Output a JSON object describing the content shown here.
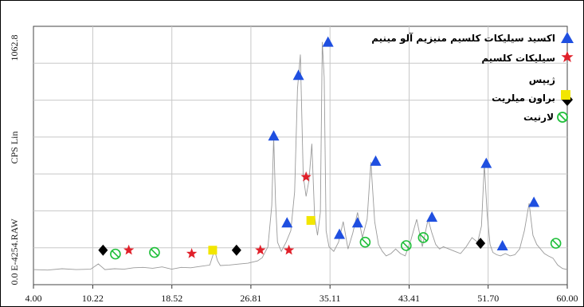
{
  "chart_data": {
    "type": "line",
    "ylabel": "CPS Lin",
    "side_label": "E-4254.RAW",
    "y_tick_labels": [
      "0.0",
      "1062.8"
    ],
    "ylim": [
      0,
      1062.8
    ],
    "xlim": [
      4.0,
      60.0
    ],
    "x_tick_labels": [
      "4.00",
      "10.22",
      "18.52",
      "26.81",
      "35.11",
      "43.41",
      "51.70",
      "60.00"
    ],
    "x_ticks": [
      4.0,
      10.22,
      18.52,
      26.81,
      35.11,
      43.41,
      51.7,
      60.0
    ],
    "grid": true,
    "legend_position": "top-right",
    "colors": {
      "trace": "#9a9a9a",
      "blue": "#1f4fe0",
      "red": "#e0202a",
      "black": "#000000",
      "yellow": "#f2e600",
      "green": "#1fbf3a"
    },
    "legend": [
      {
        "label": "اکسید سیلیکات کلسیم منیزیم آلو مینیم",
        "marker": "triangle",
        "color": "#1f4fe0"
      },
      {
        "label": "سیلیکات کلسیم",
        "marker": "star",
        "color": "#e0202a"
      },
      {
        "label": "ژیپس",
        "marker": "diamond",
        "color": "#000000"
      },
      {
        "label": "براون میلریت",
        "marker": "square",
        "color": "#f2e600"
      },
      {
        "label": "لارنیت",
        "marker": "circle-slash",
        "color": "#1fbf3a"
      }
    ],
    "series": [
      {
        "x": [
          4.0,
          5.5,
          7.0,
          8.5,
          10.0,
          10.8,
          11.5,
          12.5,
          13.5,
          14.5,
          15.5,
          16.5,
          17.5,
          18.5,
          19.5,
          20.5,
          21.5,
          22.5,
          23.0,
          23.3,
          23.6,
          24.5,
          25.5,
          26.5,
          27.5,
          28.0,
          28.6,
          29.0,
          29.2,
          29.4,
          29.6,
          30.0,
          30.5,
          31.0,
          31.4,
          31.7,
          32.0,
          32.3,
          32.6,
          32.9,
          33.2,
          33.5,
          33.8,
          34.1,
          34.3,
          34.5,
          34.7,
          35.0,
          35.5,
          36.0,
          36.5,
          37.0,
          37.5,
          38.0,
          38.5,
          39.0,
          39.4,
          39.8,
          40.2,
          40.6,
          41.0,
          41.5,
          42.0,
          42.5,
          43.0,
          43.6,
          44.2,
          44.8,
          45.4,
          45.8,
          46.2,
          46.6,
          47.0,
          47.6,
          48.2,
          48.8,
          49.4,
          50.0,
          50.6,
          51.0,
          51.3,
          51.6,
          51.9,
          52.2,
          52.6,
          53.0,
          53.5,
          54.0,
          54.5,
          55.0,
          55.5,
          56.0,
          56.4,
          56.8,
          57.2,
          57.6,
          58.0,
          58.5,
          59.0,
          59.5,
          60.0
        ],
        "y": [
          10,
          8,
          14,
          10,
          12,
          35,
          10,
          14,
          12,
          18,
          20,
          16,
          22,
          12,
          20,
          18,
          24,
          30,
          95,
          50,
          28,
          30,
          34,
          38,
          48,
          62,
          110,
          290,
          590,
          300,
          130,
          90,
          130,
          180,
          350,
          800,
          950,
          420,
          330,
          400,
          560,
          240,
          160,
          260,
          1005,
          850,
          180,
          110,
          90,
          130,
          220,
          100,
          170,
          260,
          150,
          230,
          480,
          220,
          120,
          90,
          70,
          80,
          100,
          80,
          70,
          140,
          230,
          110,
          230,
          170,
          120,
          100,
          110,
          100,
          90,
          80,
          110,
          150,
          130,
          200,
          470,
          250,
          120,
          85,
          75,
          70,
          80,
          70,
          75,
          100,
          180,
          300,
          160,
          120,
          100,
          80,
          70,
          60,
          30,
          15,
          10
        ]
      }
    ],
    "markers": [
      {
        "kind": "triangle",
        "color": "#1f4fe0",
        "x": 29.2,
        "y": 595
      },
      {
        "kind": "triangle",
        "color": "#1f4fe0",
        "x": 30.6,
        "y": 215
      },
      {
        "kind": "triangle",
        "color": "#1f4fe0",
        "x": 31.8,
        "y": 860
      },
      {
        "kind": "triangle",
        "color": "#1f4fe0",
        "x": 34.9,
        "y": 1005
      },
      {
        "kind": "triangle",
        "color": "#1f4fe0",
        "x": 36.1,
        "y": 165
      },
      {
        "kind": "triangle",
        "color": "#1f4fe0",
        "x": 38.0,
        "y": 215
      },
      {
        "kind": "triangle",
        "color": "#1f4fe0",
        "x": 39.9,
        "y": 485
      },
      {
        "kind": "triangle",
        "color": "#1f4fe0",
        "x": 45.8,
        "y": 240
      },
      {
        "kind": "triangle",
        "color": "#1f4fe0",
        "x": 51.5,
        "y": 475
      },
      {
        "kind": "triangle",
        "color": "#1f4fe0",
        "x": 53.2,
        "y": 115
      },
      {
        "kind": "triangle",
        "color": "#1f4fe0",
        "x": 56.5,
        "y": 305
      },
      {
        "kind": "star",
        "color": "#e0202a",
        "x": 14.0,
        "y": 95
      },
      {
        "kind": "star",
        "color": "#e0202a",
        "x": 20.6,
        "y": 80
      },
      {
        "kind": "star",
        "color": "#e0202a",
        "x": 27.8,
        "y": 95
      },
      {
        "kind": "star",
        "color": "#e0202a",
        "x": 30.8,
        "y": 95
      },
      {
        "kind": "star",
        "color": "#e0202a",
        "x": 32.6,
        "y": 415
      },
      {
        "kind": "diamond",
        "color": "#000000",
        "x": 11.3,
        "y": 95
      },
      {
        "kind": "diamond",
        "color": "#000000",
        "x": 25.3,
        "y": 95
      },
      {
        "kind": "diamond",
        "color": "#000000",
        "x": 50.9,
        "y": 125
      },
      {
        "kind": "square",
        "color": "#f2e600",
        "x": 22.8,
        "y": 95
      },
      {
        "kind": "square",
        "color": "#f2e600",
        "x": 33.1,
        "y": 225
      },
      {
        "kind": "circle-slash",
        "color": "#1fbf3a",
        "x": 12.6,
        "y": 78
      },
      {
        "kind": "circle-slash",
        "color": "#1fbf3a",
        "x": 16.7,
        "y": 85
      },
      {
        "kind": "circle-slash",
        "color": "#1fbf3a",
        "x": 38.8,
        "y": 130
      },
      {
        "kind": "circle-slash",
        "color": "#1fbf3a",
        "x": 43.1,
        "y": 115
      },
      {
        "kind": "circle-slash",
        "color": "#1fbf3a",
        "x": 44.9,
        "y": 150
      },
      {
        "kind": "circle-slash",
        "color": "#1fbf3a",
        "x": 58.8,
        "y": 125
      }
    ]
  }
}
